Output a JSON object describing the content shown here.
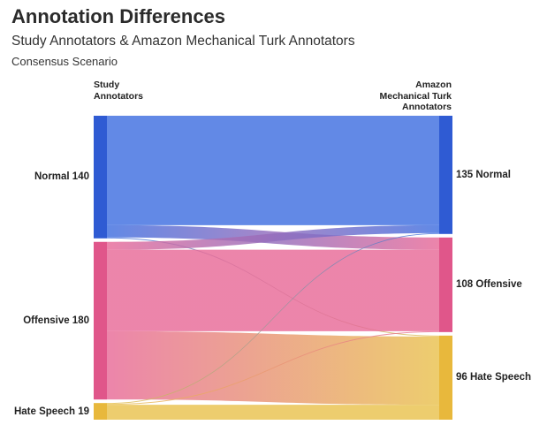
{
  "title": "Annotation Differences",
  "subtitle": "Study Annotators & Amazon Mechanical Turk Annotators",
  "scenario": "Consensus Scenario",
  "left_header": "Study\nAnnotators",
  "right_header": "Amazon\nMechanical Turk\nAnnotators",
  "colors": {
    "Normal": "#3f6fe0",
    "Offensive": "#e86a98",
    "Hate Speech": "#e9c24e",
    "Normal_bar": "#2f5bd3",
    "Offensive_bar": "#e0568a",
    "Hate Speech_bar": "#e8b83c"
  },
  "chart_data": {
    "type": "sankey",
    "left_nodes": [
      {
        "name": "Normal",
        "value": 140,
        "label": "Normal 140"
      },
      {
        "name": "Offensive",
        "value": 180,
        "label": "Offensive 180"
      },
      {
        "name": "Hate Speech",
        "value": 19,
        "label": "Hate Speech 19"
      }
    ],
    "right_nodes": [
      {
        "name": "Normal",
        "value": 135,
        "label": "135 Normal"
      },
      {
        "name": "Offensive",
        "value": 108,
        "label": "108 Offensive"
      },
      {
        "name": "Hate Speech",
        "value": 96,
        "label": "96 Hate Speech"
      }
    ],
    "links": [
      {
        "source": "Normal",
        "target": "Normal",
        "value": 125
      },
      {
        "source": "Normal",
        "target": "Offensive",
        "value": 14
      },
      {
        "source": "Normal",
        "target": "Hate Speech",
        "value": 1
      },
      {
        "source": "Offensive",
        "target": "Normal",
        "value": 9
      },
      {
        "source": "Offensive",
        "target": "Offensive",
        "value": 93
      },
      {
        "source": "Offensive",
        "target": "Hate Speech",
        "value": 78
      },
      {
        "source": "Hate Speech",
        "target": "Normal",
        "value": 1
      },
      {
        "source": "Hate Speech",
        "target": "Offensive",
        "value": 1
      },
      {
        "source": "Hate Speech",
        "target": "Hate Speech",
        "value": 17
      }
    ]
  }
}
